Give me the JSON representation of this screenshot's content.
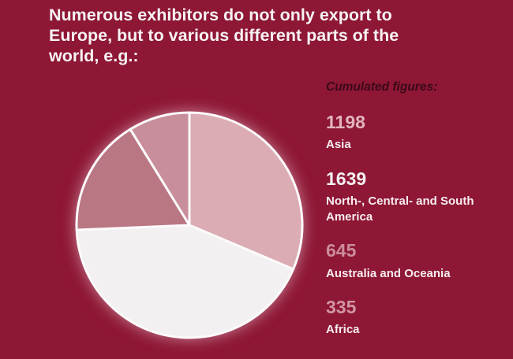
{
  "title": "Numerous exhibitors do not only export to Europe, but to various different parts of the world, e.g.:",
  "colors": {
    "background": "#8e1735",
    "title_text": "#f7f2f3",
    "legend_heading_text": "#3a0918",
    "legend_label_text": "#f6edef",
    "pie_stroke": "#fcfafb"
  },
  "legend": {
    "heading": "Cumulated figures:"
  },
  "chart_data": {
    "type": "pie",
    "title": "Numerous exhibitors do not only export to Europe, but to various different parts of the world, e.g.:",
    "legend_heading": "Cumulated figures:",
    "legend_position": "right",
    "start_angle_deg": 0,
    "direction": "clockwise",
    "segments": [
      {
        "id": "asia",
        "label": "Asia",
        "value": 1198,
        "color": "#dbacb3",
        "legend_value_color": "#e2b5bd"
      },
      {
        "id": "americas",
        "label": "North-, Central- and South America",
        "value": 1639,
        "color": "#f2f0f1",
        "legend_value_color": "#f3f0f1"
      },
      {
        "id": "australia-oceania",
        "label": "Australia and Oceania",
        "value": 645,
        "color": "#b97683",
        "legend_value_color": "#cb8d9a"
      },
      {
        "id": "africa",
        "label": "Africa",
        "value": 335,
        "color": "#c88e9b",
        "legend_value_color": "#d295a2"
      }
    ]
  }
}
